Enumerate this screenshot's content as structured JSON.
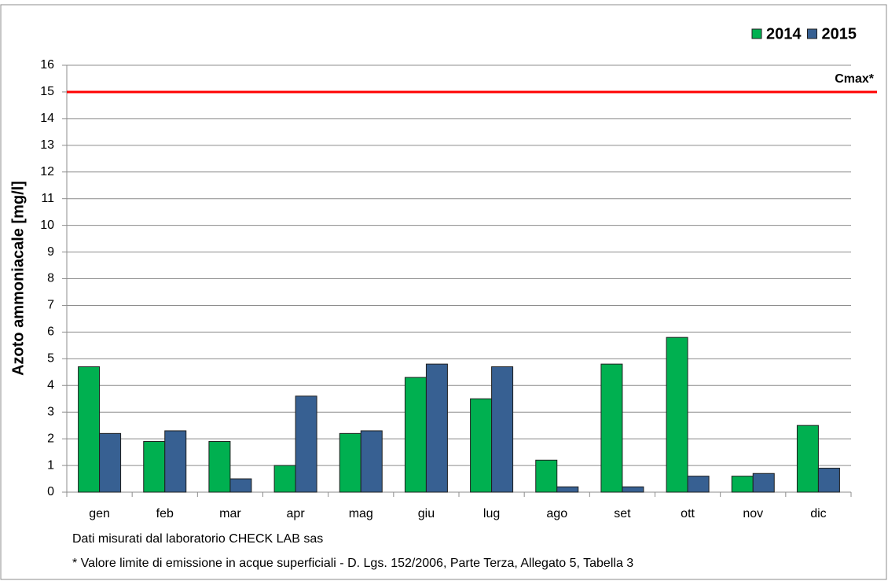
{
  "chart_data": {
    "type": "bar",
    "y_label": "Azoto ammoniacale [mg/l]",
    "categories": [
      "gen",
      "feb",
      "mar",
      "apr",
      "mag",
      "giu",
      "lug",
      "ago",
      "set",
      "ott",
      "nov",
      "dic"
    ],
    "series": [
      {
        "name": "2014",
        "color": "#00b050",
        "values": [
          4.7,
          1.9,
          1.9,
          1.0,
          2.2,
          4.3,
          3.5,
          1.2,
          4.8,
          5.8,
          0.6,
          2.5
        ]
      },
      {
        "name": "2015",
        "color": "#376092",
        "values": [
          2.2,
          2.3,
          0.5,
          3.6,
          2.3,
          4.8,
          4.7,
          0.2,
          0.2,
          0.6,
          0.7,
          0.9
        ]
      }
    ],
    "ylim": [
      0,
      16
    ],
    "yticks": [
      0,
      1,
      2,
      3,
      4,
      5,
      6,
      7,
      8,
      9,
      10,
      11,
      12,
      13,
      14,
      15,
      16
    ],
    "grid": true,
    "legend": "top-right",
    "reference_line": {
      "value": 15,
      "label": "Cmax*",
      "color": "#ff0000"
    },
    "notes": [
      "Dati misurati dal laboratorio CHECK LAB sas",
      "* Valore limite di emissione in acque superficiali - D. Lgs. 152/2006, Parte Terza, Allegato 5, Tabella 3"
    ]
  }
}
